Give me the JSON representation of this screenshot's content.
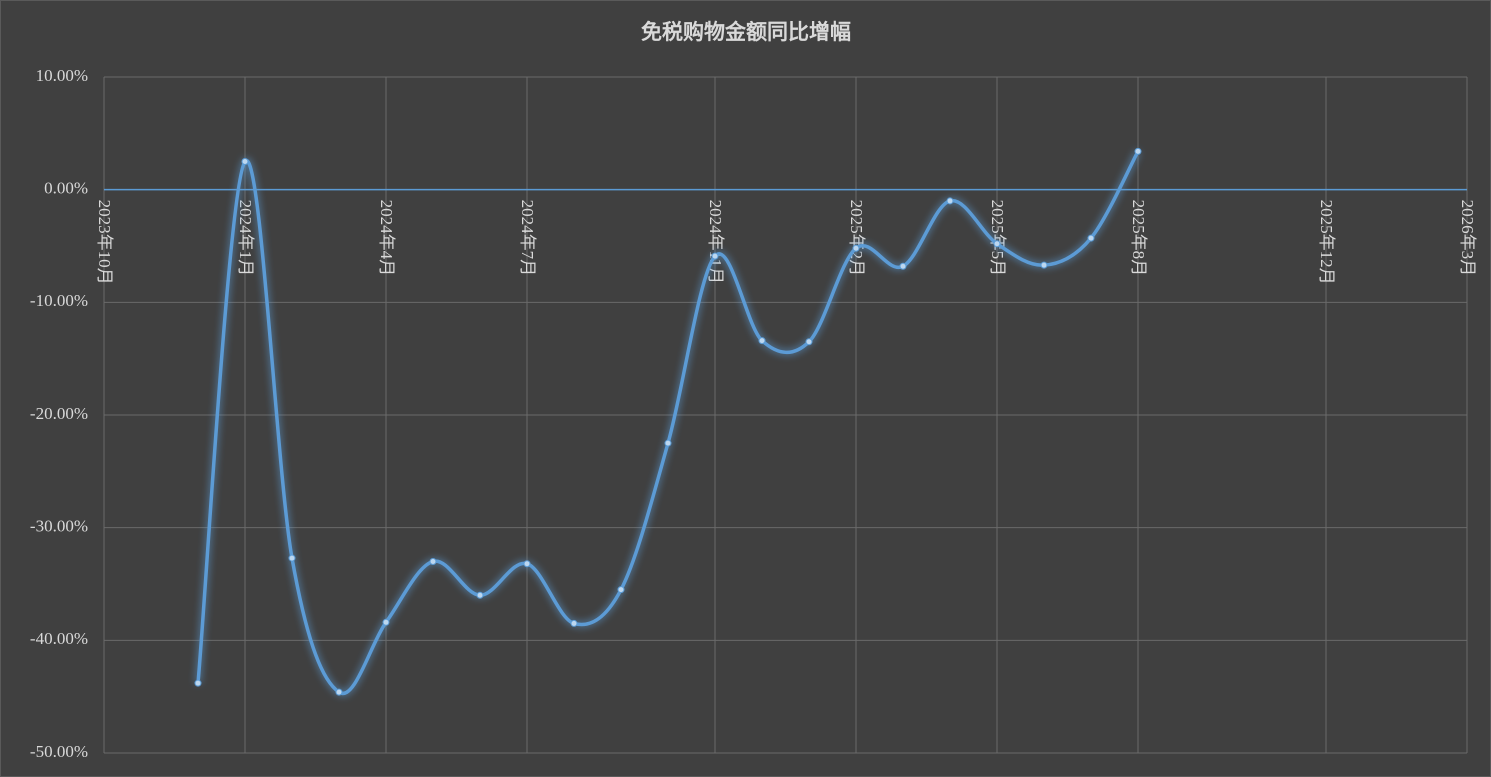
{
  "chart_data": {
    "type": "line",
    "title": "免税购物金额同比增幅",
    "x": [
      "2023-12",
      "2024-01",
      "2024-02",
      "2024-03",
      "2024-04",
      "2024-05",
      "2024-06",
      "2024-07",
      "2024-08",
      "2024-09",
      "2024-10",
      "2024-11",
      "2024-12",
      "2025-01",
      "2025-02",
      "2025-03",
      "2025-04",
      "2025-05",
      "2025-06",
      "2025-07",
      "2025-08"
    ],
    "values": [
      -43.8,
      2.5,
      -32.7,
      -44.6,
      -38.4,
      -33.0,
      -36.0,
      -33.2,
      -38.5,
      -35.5,
      -22.5,
      -5.9,
      -13.4,
      -13.5,
      -5.2,
      -6.8,
      -1.0,
      -4.8,
      -6.7,
      -4.3,
      3.4
    ],
    "color": "#5b9bd5",
    "smooth": true,
    "xlim": [
      "2023-10",
      "2026-03"
    ],
    "xticks": [
      {
        "value": "2023-10",
        "label": "2023年10月"
      },
      {
        "value": "2024-01",
        "label": "2024年1月"
      },
      {
        "value": "2024-04",
        "label": "2024年4月"
      },
      {
        "value": "2024-07",
        "label": "2024年7月"
      },
      {
        "value": "2024-11",
        "label": "2024年11月"
      },
      {
        "value": "2025-02",
        "label": "2025年2月"
      },
      {
        "value": "2025-05",
        "label": "2025年5月"
      },
      {
        "value": "2025-08",
        "label": "2025年8月"
      },
      {
        "value": "2025-12",
        "label": "2025年12月"
      },
      {
        "value": "2026-03",
        "label": "2026年3月"
      }
    ],
    "ylim": [
      -50,
      10
    ],
    "yticks": [
      {
        "value": 10,
        "label": "10.00%"
      },
      {
        "value": 0,
        "label": "0.00%"
      },
      {
        "value": -10,
        "label": "-10.00%"
      },
      {
        "value": -20,
        "label": "-20.00%"
      },
      {
        "value": -30,
        "label": "-30.00%"
      },
      {
        "value": -40,
        "label": "-40.00%"
      },
      {
        "value": -50,
        "label": "-50.00%"
      }
    ],
    "grid": true
  }
}
